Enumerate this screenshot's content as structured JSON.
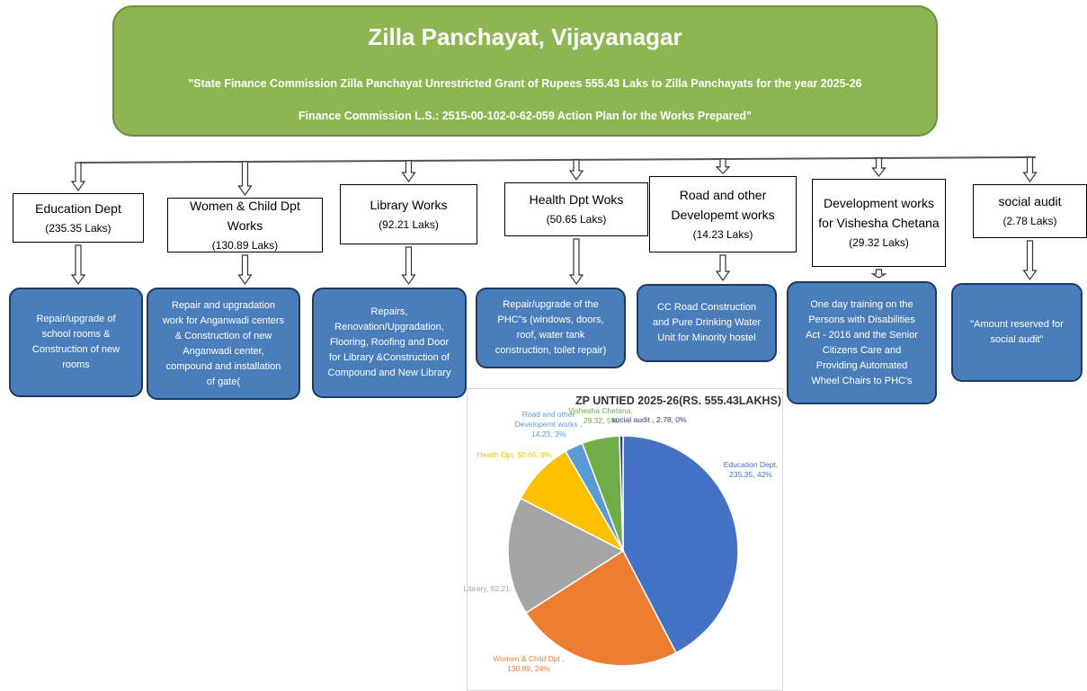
{
  "header": {
    "title": "Zilla Panchayat, Vijayanagar",
    "lines": [
      "\"State Finance Commission Zilla Panchayat Unrestricted Grant of Rupees 555.43 Laks to Zilla Panchayats for the year 2025-26",
      "Finance Commission L.S.: 2515-00-102-0-62-059 Action Plan for the Works Prepared\""
    ]
  },
  "departments": [
    {
      "name": "Education Dept",
      "amount": "(235.35 Laks)",
      "works": "Repair/upgrade of school rooms & Construction of new rooms"
    },
    {
      "name": "Women & Child Dpt Works",
      "amount": "(130.89 Laks)",
      "works": "Repair and upgradation work for Anganwadi centers & Construction of new Anganwadi center, compound and installation of gate("
    },
    {
      "name": "Library Works",
      "amount": "(92.21 Laks)",
      "works": "Repairs, Renovation/Upgradation, Flooring, Roofing and Door for Library &Construction of Compound and New Library"
    },
    {
      "name": "Health Dpt Woks",
      "amount": "(50.65 Laks)",
      "works": "Repair/upgrade of the PHC\"s (windows, doors, roof, water tank construction, toilet repair)"
    },
    {
      "name": "Road and other Developemt works",
      "amount": "(14.23 Laks)",
      "works": "CC Road Construction and Pure Drinking Water Unit for Minority hostel"
    },
    {
      "name": "Development works for Vishesha Chetana",
      "amount": "(29.32 Laks)",
      "works": "One day training on the Persons with Disabilities Act - 2016 and the Senior Citizens Care and Providing Automated Wheel Chairs to PHC's"
    },
    {
      "name": "social audit",
      "amount": "(2.78 Laks)",
      "works": "\"Amount reserved for social audit\""
    }
  ],
  "chart_data": {
    "type": "pie",
    "title": "ZP UNTIED 2025-26(RS. 555.43LAKHS)",
    "values": [
      235.35,
      130.89,
      92.21,
      50.65,
      14.23,
      29.32,
      2.78
    ],
    "value_labels": [
      "Education Dept, 235.35, 42%",
      "Women & Child Dpt , 130.89, 24%",
      "Library, 92.21, 17%",
      "Health Dpt, 50.65, 9%",
      "Road and other Developemt works , 14.23, 3%",
      "Vishesha Chetana, 29.32, 5%",
      "social audit , 2.78, 0%"
    ],
    "colors": [
      "#4472c4",
      "#ed7d31",
      "#a5a5a5",
      "#ffc000",
      "#5b9bd5",
      "#70ad47",
      "#264478"
    ]
  }
}
